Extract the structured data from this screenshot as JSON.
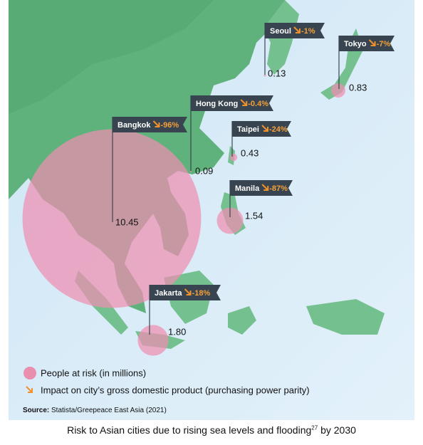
{
  "cities": [
    {
      "name": "Seoul",
      "gdp_impact": "-1%",
      "people": "0.13"
    },
    {
      "name": "Tokyo",
      "gdp_impact": "-7%",
      "people": "0.83"
    },
    {
      "name": "Hong Kong",
      "gdp_impact": "-0.4%",
      "people": "0.09"
    },
    {
      "name": "Bangkok",
      "gdp_impact": "-96%",
      "people": "10.45"
    },
    {
      "name": "Taipei",
      "gdp_impact": "-24%",
      "people": "0.43"
    },
    {
      "name": "Manila",
      "gdp_impact": "-87%",
      "people": "1.54"
    },
    {
      "name": "Jakarta",
      "gdp_impact": "-18%",
      "people": "1.80"
    }
  ],
  "legend": {
    "people": "People at risk (in millions)",
    "impact": "Impact on city’s gross domestic product (purchasing power parity)"
  },
  "source_label": "Source:",
  "source": "Statista/Greepeace East Asia (2021)",
  "caption": {
    "text": "Risk to Asian cities due to rising sea levels and flooding",
    "note": "27",
    "suffix": " by 2030"
  }
}
